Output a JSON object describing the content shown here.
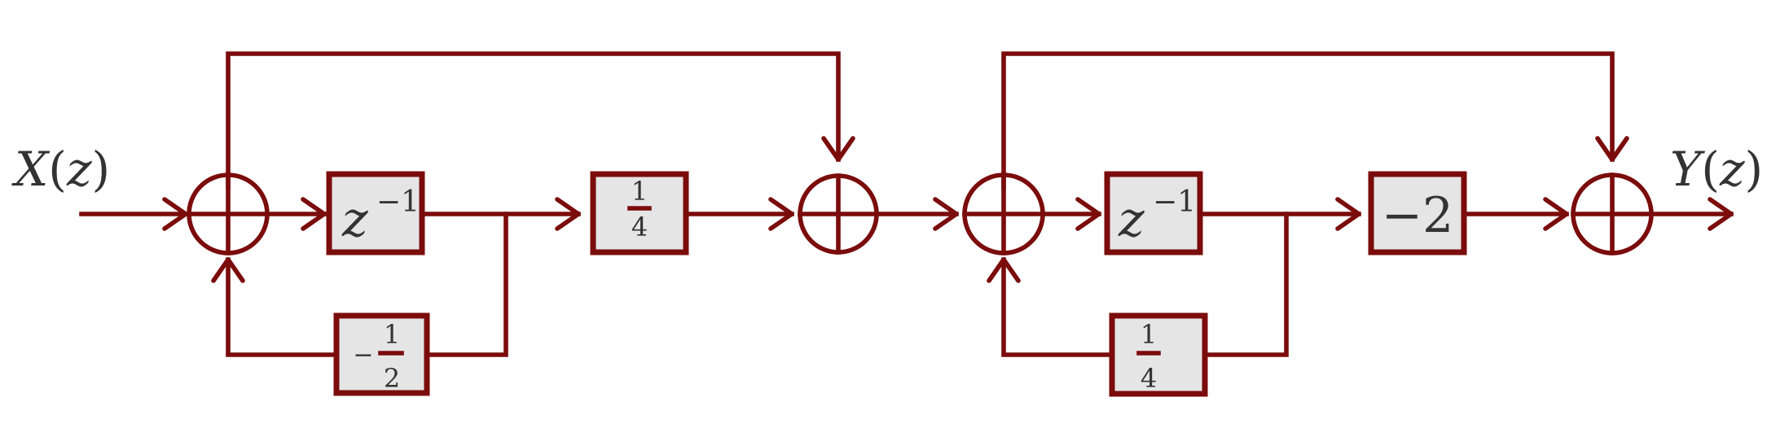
{
  "colors": {
    "line": "#7b0c0c",
    "box_fill": "#e5e5e5",
    "text": "#333333",
    "background": "#ffffff"
  },
  "signals": {
    "input_var": "X",
    "output_var": "Y",
    "arg": "z",
    "open_paren": "(",
    "close_paren": ")"
  },
  "blocks": {
    "delay1": {
      "base": "z",
      "exponent": "−1"
    },
    "gain_quarter": {
      "numerator": "1",
      "denominator": "4"
    },
    "feedback_neg_half": {
      "sign": "−",
      "numerator": "1",
      "denominator": "2"
    },
    "delay2": {
      "base": "z",
      "exponent": "−1"
    },
    "gain_neg_two": {
      "value": "−2"
    },
    "feedback_quarter": {
      "numerator": "1",
      "denominator": "4"
    }
  }
}
